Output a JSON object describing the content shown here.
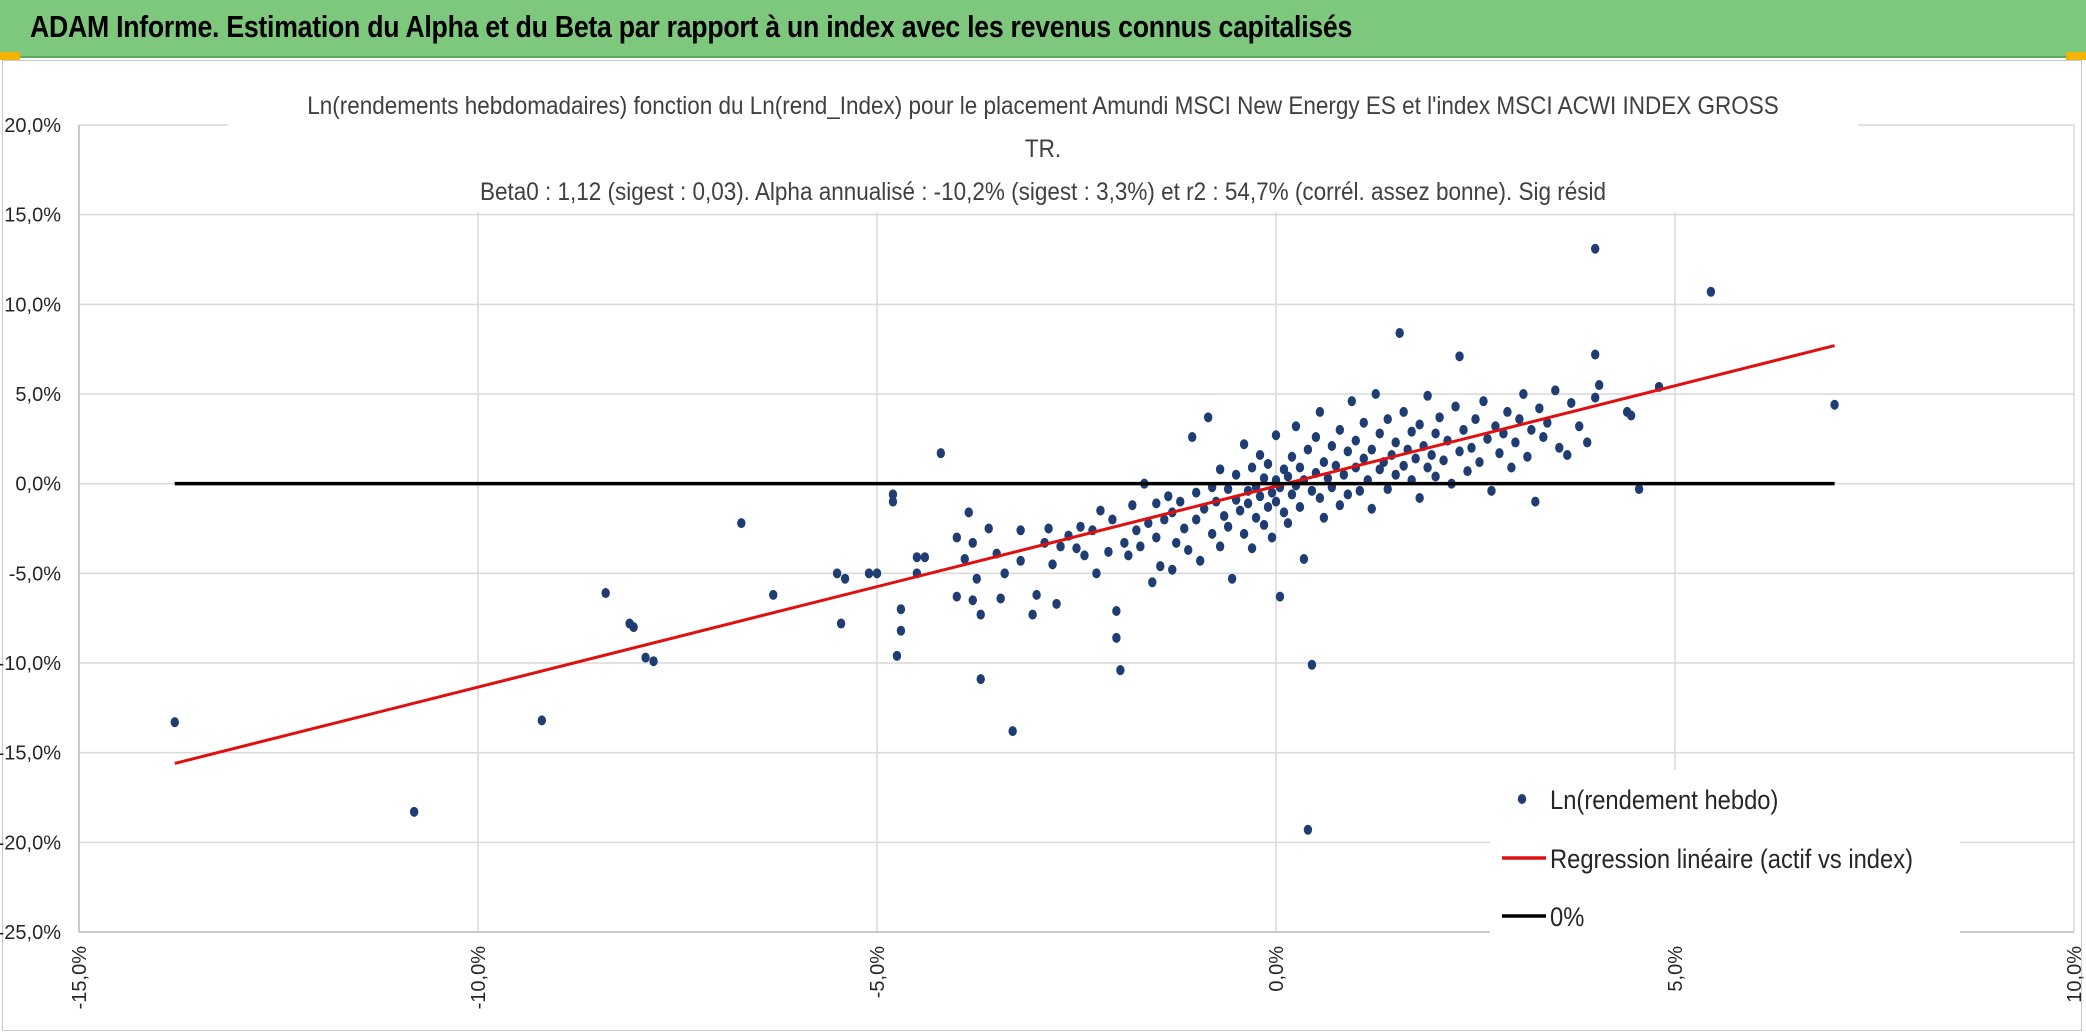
{
  "banner": {
    "title": "ADAM Informe. Estimation du Alpha et du Beta par rapport à un index avec les revenus connus capitalisés",
    "background": "#7dc87d",
    "accent": "#f2b400"
  },
  "chart_data": {
    "type": "scatter",
    "title_lines": [
      "Ln(rendements hebdomadaires) fonction du Ln(rend_Index) pour le placement Amundi MSCI New Energy ES et l'index MSCI ACWI INDEX GROSS",
      "TR.",
      "Beta0 : 1,12 (sigest : 0,03). Alpha annualisé : -10,2% (sigest : 3,3%) et r2 : 54,7% (corrél. assez bonne). Sig résid"
    ],
    "xlim": [
      -15,
      10
    ],
    "ylim": [
      -25,
      20
    ],
    "x_ticks": [
      -15,
      -10,
      -5,
      0,
      5,
      10
    ],
    "y_ticks": [
      20,
      15,
      10,
      5,
      0,
      -5,
      -10,
      -15,
      -20,
      -25
    ],
    "x_tick_labels": [
      "-15,0%",
      "-10,0%",
      "-5,0%",
      "0,0%",
      "5,0%",
      "10,0%"
    ],
    "y_tick_labels": [
      "20,0%",
      "15,0%",
      "10,0%",
      "5,0%",
      "0,0%",
      "-5,0%",
      "-10,0%",
      "-15,0%",
      "-20,0%",
      "-25,0%"
    ],
    "grid": true,
    "legend_position": "bottom-right",
    "series": [
      {
        "name": "Ln(rendement hebdo)",
        "kind": "points",
        "color": "#1f3d73",
        "points": [
          [
            -13.8,
            -13.3
          ],
          [
            -10.8,
            -18.3
          ],
          [
            -9.2,
            -13.2
          ],
          [
            -8.4,
            -6.1
          ],
          [
            -8.1,
            -7.8
          ],
          [
            -8.05,
            -8.0
          ],
          [
            -7.9,
            -9.7
          ],
          [
            -7.8,
            -9.9
          ],
          [
            -6.7,
            -2.2
          ],
          [
            -6.3,
            -6.2
          ],
          [
            -5.5,
            -5.0
          ],
          [
            -5.45,
            -7.8
          ],
          [
            -5.4,
            -5.3
          ],
          [
            -5.1,
            -5.0
          ],
          [
            -5.0,
            -5.0
          ],
          [
            -4.8,
            -0.6
          ],
          [
            -4.8,
            -1.0
          ],
          [
            -4.75,
            -9.6
          ],
          [
            -4.7,
            -8.2
          ],
          [
            -4.7,
            -7.0
          ],
          [
            -4.5,
            -4.1
          ],
          [
            -4.5,
            -5.0
          ],
          [
            -4.4,
            -4.1
          ],
          [
            -4.2,
            1.7
          ],
          [
            -4.0,
            -3.0
          ],
          [
            -4.0,
            -6.3
          ],
          [
            -3.9,
            -4.2
          ],
          [
            -3.85,
            -1.6
          ],
          [
            -3.8,
            -3.3
          ],
          [
            -3.8,
            -6.5
          ],
          [
            -3.75,
            -5.3
          ],
          [
            -3.7,
            -7.3
          ],
          [
            -3.7,
            -10.9
          ],
          [
            -3.6,
            -2.5
          ],
          [
            -3.5,
            -3.9
          ],
          [
            -3.45,
            -6.4
          ],
          [
            -3.4,
            -5.0
          ],
          [
            -3.3,
            -13.8
          ],
          [
            -3.2,
            -4.3
          ],
          [
            -3.2,
            -2.6
          ],
          [
            -3.05,
            -7.3
          ],
          [
            -3.0,
            -6.2
          ],
          [
            -2.9,
            -3.3
          ],
          [
            -2.85,
            -2.5
          ],
          [
            -2.8,
            -4.5
          ],
          [
            -2.75,
            -6.7
          ],
          [
            -2.7,
            -3.5
          ],
          [
            -2.6,
            -2.9
          ],
          [
            -2.5,
            -3.6
          ],
          [
            -2.45,
            -2.4
          ],
          [
            -2.4,
            -4.0
          ],
          [
            -2.3,
            -2.6
          ],
          [
            -2.25,
            -5.0
          ],
          [
            -2.2,
            -1.5
          ],
          [
            -2.1,
            -3.8
          ],
          [
            -2.05,
            -2.0
          ],
          [
            -2.0,
            -7.1
          ],
          [
            -2.0,
            -8.6
          ],
          [
            -1.95,
            -10.4
          ],
          [
            -1.9,
            -3.3
          ],
          [
            -1.85,
            -4.0
          ],
          [
            -1.8,
            -1.2
          ],
          [
            -1.75,
            -2.6
          ],
          [
            -1.7,
            -3.5
          ],
          [
            -1.65,
            0.0
          ],
          [
            -1.6,
            -2.2
          ],
          [
            -1.55,
            -5.5
          ],
          [
            -1.5,
            -1.1
          ],
          [
            -1.5,
            -3.0
          ],
          [
            -1.45,
            -4.6
          ],
          [
            -1.4,
            -2.0
          ],
          [
            -1.35,
            -0.7
          ],
          [
            -1.3,
            -4.8
          ],
          [
            -1.3,
            -1.6
          ],
          [
            -1.25,
            -3.3
          ],
          [
            -1.2,
            -1.0
          ],
          [
            -1.15,
            -2.5
          ],
          [
            -1.1,
            -3.7
          ],
          [
            -1.05,
            2.6
          ],
          [
            -1.0,
            -0.5
          ],
          [
            -1.0,
            -2.0
          ],
          [
            -0.95,
            -4.3
          ],
          [
            -0.9,
            -1.4
          ],
          [
            -0.85,
            3.7
          ],
          [
            -0.8,
            -0.2
          ],
          [
            -0.8,
            -2.8
          ],
          [
            -0.75,
            -1.0
          ],
          [
            -0.7,
            -3.5
          ],
          [
            -0.7,
            0.8
          ],
          [
            -0.65,
            -1.8
          ],
          [
            -0.6,
            -0.3
          ],
          [
            -0.6,
            -2.4
          ],
          [
            -0.55,
            -5.3
          ],
          [
            -0.5,
            -0.9
          ],
          [
            -0.5,
            0.5
          ],
          [
            -0.45,
            -1.5
          ],
          [
            -0.4,
            -2.8
          ],
          [
            -0.4,
            2.2
          ],
          [
            -0.35,
            -0.4
          ],
          [
            -0.35,
            -1.1
          ],
          [
            -0.3,
            -3.6
          ],
          [
            -0.3,
            0.9
          ],
          [
            -0.25,
            -0.2
          ],
          [
            -0.25,
            -1.9
          ],
          [
            -0.2,
            1.6
          ],
          [
            -0.2,
            -0.7
          ],
          [
            -0.15,
            -2.3
          ],
          [
            -0.15,
            0.3
          ],
          [
            -0.1,
            -1.3
          ],
          [
            -0.1,
            1.1
          ],
          [
            -0.05,
            -0.5
          ],
          [
            -0.05,
            -3.0
          ],
          [
            0.0,
            0.2
          ],
          [
            0.0,
            -1.0
          ],
          [
            0.0,
            2.7
          ],
          [
            0.05,
            -6.3
          ],
          [
            0.05,
            -0.2
          ],
          [
            0.1,
            0.8
          ],
          [
            0.1,
            -1.6
          ],
          [
            0.15,
            0.4
          ],
          [
            0.15,
            -2.2
          ],
          [
            0.2,
            1.5
          ],
          [
            0.2,
            -0.6
          ],
          [
            0.25,
            3.2
          ],
          [
            0.25,
            -0.1
          ],
          [
            0.3,
            0.9
          ],
          [
            0.3,
            -1.3
          ],
          [
            0.35,
            -4.2
          ],
          [
            0.35,
            0.2
          ],
          [
            0.4,
            -19.3
          ],
          [
            0.4,
            1.9
          ],
          [
            0.45,
            -0.4
          ],
          [
            0.45,
            -10.1
          ],
          [
            0.5,
            0.6
          ],
          [
            0.5,
            2.6
          ],
          [
            0.55,
            -0.8
          ],
          [
            0.55,
            4.0
          ],
          [
            0.6,
            1.2
          ],
          [
            0.6,
            -1.9
          ],
          [
            0.65,
            0.3
          ],
          [
            0.7,
            2.1
          ],
          [
            0.7,
            -0.2
          ],
          [
            0.75,
            1.0
          ],
          [
            0.8,
            3.0
          ],
          [
            0.8,
            -1.2
          ],
          [
            0.85,
            0.5
          ],
          [
            0.9,
            1.8
          ],
          [
            0.9,
            -0.6
          ],
          [
            0.95,
            4.6
          ],
          [
            1.0,
            0.9
          ],
          [
            1.0,
            2.4
          ],
          [
            1.05,
            -0.4
          ],
          [
            1.1,
            1.4
          ],
          [
            1.1,
            3.4
          ],
          [
            1.15,
            0.2
          ],
          [
            1.2,
            1.9
          ],
          [
            1.2,
            -1.4
          ],
          [
            1.25,
            5.0
          ],
          [
            1.3,
            0.8
          ],
          [
            1.3,
            2.8
          ],
          [
            1.35,
            1.2
          ],
          [
            1.4,
            -0.3
          ],
          [
            1.4,
            3.6
          ],
          [
            1.45,
            1.6
          ],
          [
            1.5,
            0.5
          ],
          [
            1.5,
            2.3
          ],
          [
            1.55,
            8.4
          ],
          [
            1.6,
            1.0
          ],
          [
            1.6,
            4.0
          ],
          [
            1.65,
            1.9
          ],
          [
            1.7,
            0.2
          ],
          [
            1.7,
            2.9
          ],
          [
            1.75,
            1.4
          ],
          [
            1.8,
            3.3
          ],
          [
            1.8,
            -0.8
          ],
          [
            1.85,
            2.1
          ],
          [
            1.9,
            4.9
          ],
          [
            1.9,
            0.9
          ],
          [
            1.95,
            1.6
          ],
          [
            2.0,
            2.8
          ],
          [
            2.0,
            0.4
          ],
          [
            2.05,
            3.7
          ],
          [
            2.1,
            1.3
          ],
          [
            2.15,
            2.4
          ],
          [
            2.2,
            0.0
          ],
          [
            2.25,
            4.3
          ],
          [
            2.3,
            1.8
          ],
          [
            2.3,
            7.1
          ],
          [
            2.35,
            3.0
          ],
          [
            2.4,
            0.7
          ],
          [
            2.45,
            2.0
          ],
          [
            2.5,
            3.6
          ],
          [
            2.55,
            1.2
          ],
          [
            2.6,
            4.6
          ],
          [
            2.65,
            2.5
          ],
          [
            2.7,
            -0.4
          ],
          [
            2.75,
            3.2
          ],
          [
            2.8,
            1.7
          ],
          [
            2.85,
            2.8
          ],
          [
            2.9,
            4.0
          ],
          [
            2.95,
            0.9
          ],
          [
            3.0,
            2.3
          ],
          [
            3.05,
            3.6
          ],
          [
            3.1,
            5.0
          ],
          [
            3.15,
            1.5
          ],
          [
            3.2,
            3.0
          ],
          [
            3.25,
            -1.0
          ],
          [
            3.3,
            4.2
          ],
          [
            3.35,
            2.6
          ],
          [
            3.4,
            3.4
          ],
          [
            3.5,
            5.2
          ],
          [
            3.55,
            2.0
          ],
          [
            3.65,
            1.6
          ],
          [
            3.7,
            4.5
          ],
          [
            3.8,
            3.2
          ],
          [
            3.9,
            2.3
          ],
          [
            4.0,
            4.8
          ],
          [
            4.0,
            7.2
          ],
          [
            4.0,
            13.1
          ],
          [
            4.05,
            5.5
          ],
          [
            4.4,
            4.0
          ],
          [
            4.45,
            3.8
          ],
          [
            4.55,
            -0.3
          ],
          [
            4.8,
            5.4
          ],
          [
            5.45,
            10.7
          ],
          [
            7.0,
            4.4
          ]
        ]
      },
      {
        "name": "Regression linéaire (actif vs index)",
        "kind": "line",
        "color": "#e01010",
        "x": [
          -13.8,
          7.0
        ],
        "y": [
          -15.6,
          7.7
        ]
      },
      {
        "name": "0%",
        "kind": "line",
        "color": "#000000",
        "x": [
          -13.8,
          7.0
        ],
        "y": [
          0,
          0
        ]
      }
    ]
  }
}
